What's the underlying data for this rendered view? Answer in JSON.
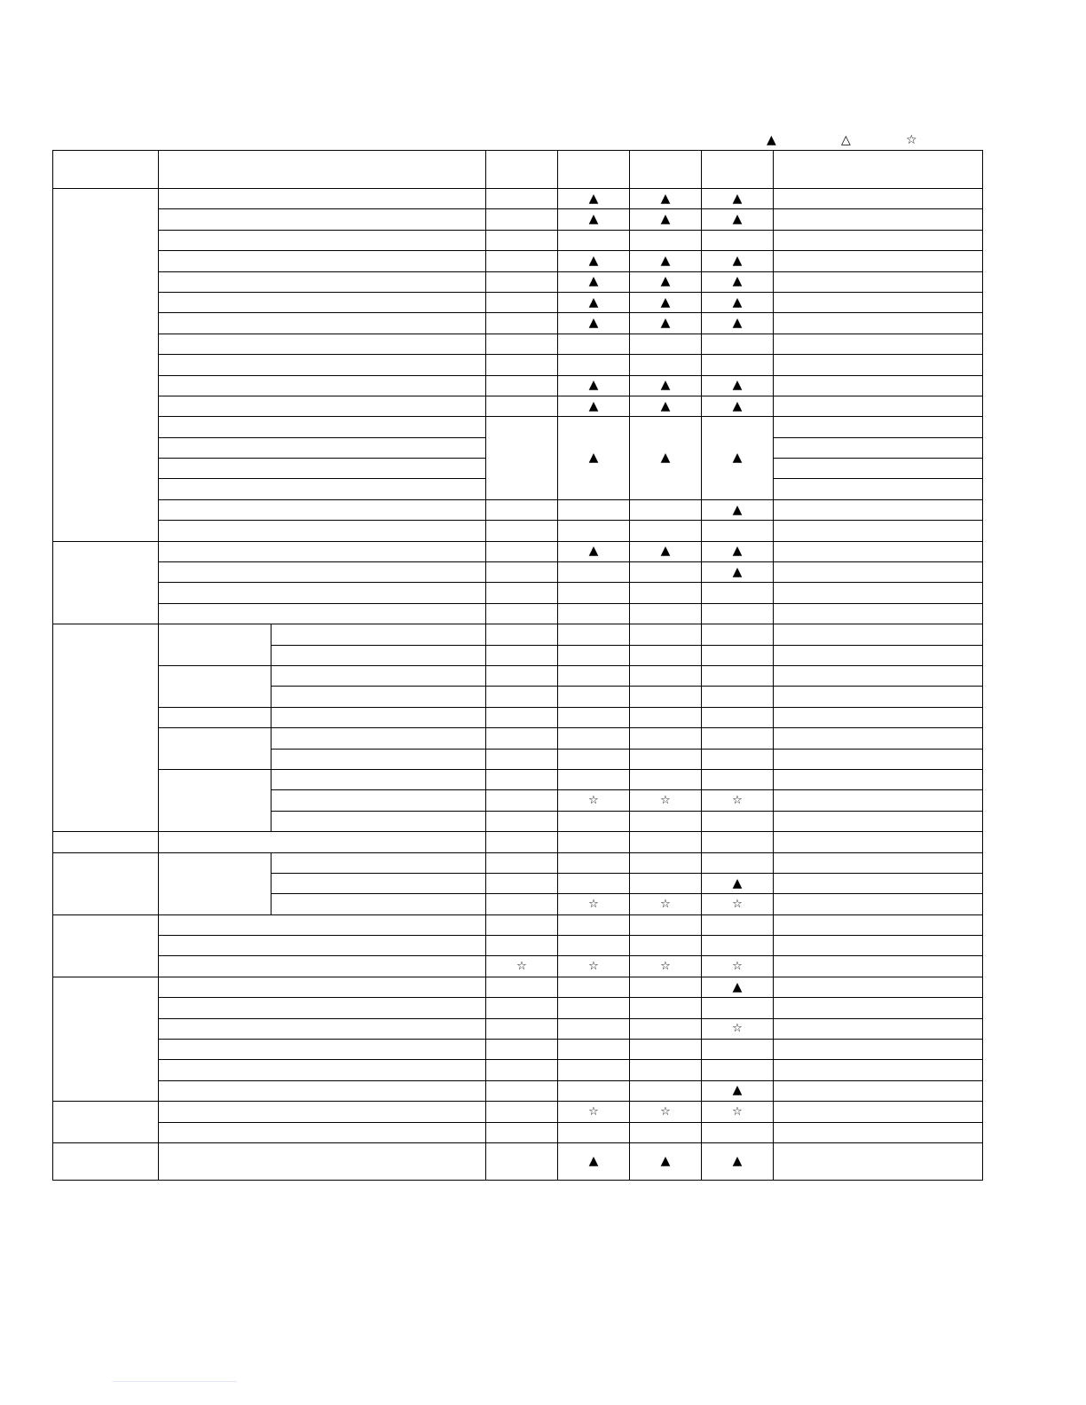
{
  "legend": [
    {
      "icon": "filled-triangle",
      "glyph": "▲"
    },
    {
      "icon": "outline-triangle",
      "glyph": "△"
    },
    {
      "icon": "star",
      "glyph": "☆"
    }
  ],
  "symbols": {
    "T": "▲",
    "S": "☆"
  },
  "groups": [
    {
      "rows": [
        [
          "",
          "T",
          "T",
          "T"
        ],
        [
          "",
          "T",
          "T",
          "T"
        ],
        [
          "",
          "",
          "",
          ""
        ],
        [
          "",
          "T",
          "T",
          "T"
        ],
        [
          "",
          "T",
          "T",
          "T"
        ],
        [
          "",
          "T",
          "T",
          "T"
        ],
        [
          "",
          "T",
          "T",
          "T"
        ],
        [
          "",
          "",
          "",
          ""
        ],
        [
          "",
          "",
          "",
          ""
        ],
        [
          "",
          "T",
          "T",
          "T"
        ],
        [
          "",
          "T",
          "T",
          "T"
        ],
        {
          "merge": 4,
          "marks": [
            "",
            "T",
            "T",
            "T"
          ]
        },
        {
          "merged": true
        },
        {
          "merged": true
        },
        {
          "merged": true
        },
        [
          "",
          "",
          "",
          "T"
        ],
        [
          "",
          "",
          "",
          ""
        ]
      ]
    },
    {
      "rows": [
        [
          "",
          "T",
          "T",
          "T"
        ],
        [
          "",
          "",
          "",
          "T"
        ],
        [
          "",
          "",
          "",
          ""
        ],
        [
          "",
          "",
          "",
          ""
        ]
      ]
    },
    {
      "sub": [
        2,
        2,
        1,
        2,
        3
      ],
      "rows": [
        [
          "",
          "",
          "",
          ""
        ],
        [
          "",
          "",
          "",
          ""
        ],
        [
          "",
          "",
          "",
          ""
        ],
        [
          "",
          "",
          "",
          ""
        ],
        [
          "",
          "",
          "",
          ""
        ],
        [
          "",
          "",
          "",
          ""
        ],
        [
          "",
          "",
          "",
          ""
        ],
        [
          "",
          "",
          "",
          ""
        ],
        [
          "",
          "S",
          "S",
          "S"
        ],
        [
          "",
          "",
          "",
          ""
        ]
      ]
    },
    {
      "rows": [
        [
          "",
          "",
          "",
          ""
        ]
      ]
    },
    {
      "sub": [
        3
      ],
      "rows": [
        [
          "",
          "",
          "",
          ""
        ],
        [
          "",
          "",
          "",
          "T"
        ],
        [
          "",
          "S",
          "S",
          "S"
        ]
      ]
    },
    {
      "rows": [
        [
          "",
          "",
          "",
          ""
        ],
        [
          "",
          "",
          "",
          ""
        ],
        [
          "S",
          "S",
          "S",
          "S"
        ]
      ]
    },
    {
      "rows": [
        [
          "",
          "",
          "",
          "T"
        ],
        [
          "",
          "",
          "",
          ""
        ],
        [
          "",
          "",
          "",
          "S"
        ],
        [
          "",
          "",
          "",
          ""
        ],
        [
          "",
          "",
          "",
          ""
        ],
        [
          "",
          "",
          "",
          "T"
        ]
      ]
    },
    {
      "rows": [
        [
          "",
          "S",
          "S",
          "S"
        ],
        [
          "",
          "",
          "",
          ""
        ]
      ]
    },
    {
      "tall": true,
      "rows": [
        [
          "",
          "T",
          "T",
          "T"
        ]
      ]
    }
  ]
}
